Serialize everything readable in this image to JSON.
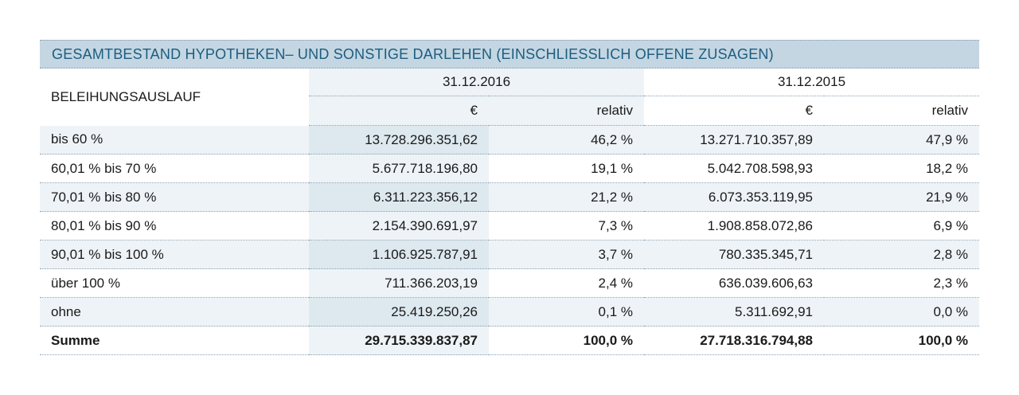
{
  "title": "GESAMTBESTAND HYPOTHEKEN– UND SONSTIGE DARLEHEN (EINSCHLIESSLICH OFFENE ZUSAGEN)",
  "header": {
    "row_label": "BELEIHUNGSAUSLAUF",
    "date_2016": "31.12.2016",
    "date_2015": "31.12.2015",
    "currency": "€",
    "relative": "relativ"
  },
  "rows": [
    {
      "label": "bis 60 %",
      "eur_2016": "13.728.296.351,62",
      "rel_2016": "46,2 %",
      "eur_2015": "13.271.710.357,89",
      "rel_2015": "47,9 %"
    },
    {
      "label": "60,01 % bis 70 %",
      "eur_2016": "5.677.718.196,80",
      "rel_2016": "19,1 %",
      "eur_2015": "5.042.708.598,93",
      "rel_2015": "18,2 %"
    },
    {
      "label": "70,01 % bis 80 %",
      "eur_2016": "6.311.223.356,12",
      "rel_2016": "21,2 %",
      "eur_2015": "6.073.353.119,95",
      "rel_2015": "21,9 %"
    },
    {
      "label": "80,01 % bis 90 %",
      "eur_2016": "2.154.390.691,97",
      "rel_2016": "7,3 %",
      "eur_2015": "1.908.858.072,86",
      "rel_2015": "6,9 %"
    },
    {
      "label": "90,01 % bis 100 %",
      "eur_2016": "1.106.925.787,91",
      "rel_2016": "3,7 %",
      "eur_2015": "780.335.345,71",
      "rel_2015": "2,8 %"
    },
    {
      "label": "über 100 %",
      "eur_2016": "711.366.203,19",
      "rel_2016": "2,4 %",
      "eur_2015": "636.039.606,63",
      "rel_2015": "2,3 %"
    },
    {
      "label": "ohne",
      "eur_2016": "25.419.250,26",
      "rel_2016": "0,1 %",
      "eur_2015": "5.311.692,91",
      "rel_2015": "0,0 %"
    }
  ],
  "total": {
    "label": "Summe",
    "eur_2016": "29.715.339.837,87",
    "rel_2016": "100,0 %",
    "eur_2015": "27.718.316.794,88",
    "rel_2015": "100,0 %"
  }
}
